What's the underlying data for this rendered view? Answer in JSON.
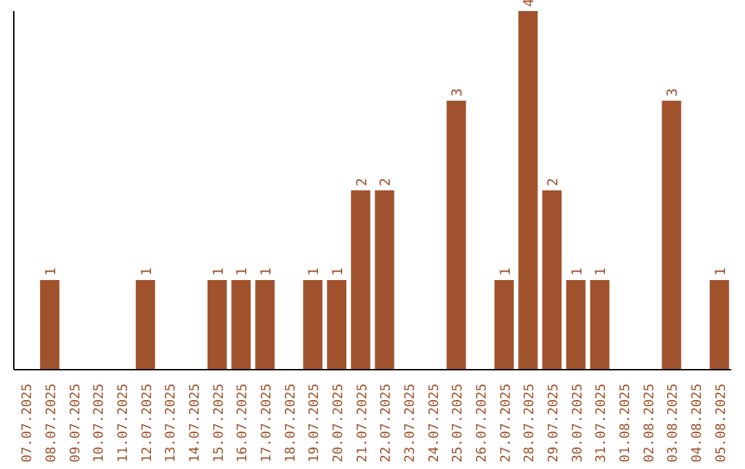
{
  "chart_data": {
    "type": "bar",
    "categories": [
      "07.07.2025",
      "08.07.2025",
      "09.07.2025",
      "10.07.2025",
      "11.07.2025",
      "12.07.2025",
      "13.07.2025",
      "14.07.2025",
      "15.07.2025",
      "16.07.2025",
      "17.07.2025",
      "18.07.2025",
      "19.07.2025",
      "20.07.2025",
      "21.07.2025",
      "22.07.2025",
      "23.07.2025",
      "24.07.2025",
      "25.07.2025",
      "26.07.2025",
      "27.07.2025",
      "28.07.2025",
      "29.07.2025",
      "30.07.2025",
      "31.07.2025",
      "01.08.2025",
      "02.08.2025",
      "03.08.2025",
      "04.08.2025",
      "05.08.2025"
    ],
    "values": [
      0,
      1,
      0,
      0,
      0,
      1,
      0,
      0,
      1,
      1,
      1,
      0,
      1,
      1,
      2,
      2,
      0,
      0,
      3,
      0,
      1,
      4,
      2,
      1,
      1,
      0,
      0,
      3,
      0,
      1
    ],
    "value_labels": [
      null,
      "1",
      null,
      null,
      null,
      "1",
      null,
      null,
      "1",
      "1",
      "1",
      null,
      "1",
      "1",
      "2",
      "2",
      null,
      null,
      "3",
      null,
      "1",
      "4",
      "2",
      "1",
      "1",
      null,
      null,
      "3",
      null,
      "1"
    ],
    "color": "#a0522d",
    "grid": false,
    "legend": false
  }
}
